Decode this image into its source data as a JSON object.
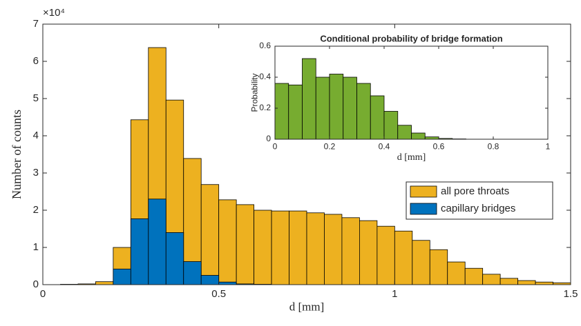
{
  "chart_data": [
    {
      "type": "histogram",
      "xlabel": "d [mm]",
      "ylabel": "Number of counts",
      "y_multiplier": "×10⁴",
      "bins": [
        0,
        0.05,
        0.1,
        0.15,
        0.2,
        0.25,
        0.3,
        0.35,
        0.4,
        0.45,
        0.5,
        0.55,
        0.6,
        0.65,
        0.7,
        0.75,
        0.8,
        0.85,
        0.9,
        0.95,
        1,
        1.05,
        1.1,
        1.15,
        1.2,
        1.25,
        1.3,
        1.35,
        1.4,
        1.45,
        1.5
      ],
      "series": [
        {
          "name": "all pore throats",
          "color": "#EDB120",
          "values": [
            0.0,
            0.01,
            0.02,
            0.08,
            1.0,
            4.43,
            6.37,
            4.96,
            3.39,
            2.69,
            2.28,
            2.15,
            2.0,
            1.98,
            1.98,
            1.93,
            1.89,
            1.8,
            1.72,
            1.57,
            1.44,
            1.19,
            0.94,
            0.61,
            0.44,
            0.28,
            0.17,
            0.11,
            0.07,
            0.05
          ]
        },
        {
          "name": "capillary bridges",
          "color": "#0072BD",
          "values": [
            0,
            0,
            0,
            0,
            0.42,
            1.77,
            2.3,
            1.4,
            0.62,
            0.25,
            0.07,
            0.02,
            0.01,
            0,
            0,
            0,
            0,
            0,
            0,
            0,
            0,
            0,
            0,
            0,
            0,
            0,
            0,
            0,
            0,
            0
          ]
        }
      ],
      "xlim": [
        0,
        1.5
      ],
      "xticks": [
        0,
        0.5,
        1,
        1.5
      ],
      "ylim": [
        0,
        7
      ],
      "yticks": [
        0,
        1,
        2,
        3,
        4,
        5,
        6,
        7
      ],
      "legend": "right"
    },
    {
      "type": "histogram",
      "title": "Conditional probability of bridge formation",
      "xlabel": "d [mm]",
      "ylabel": "Probability",
      "bins": [
        0,
        0.05,
        0.1,
        0.15,
        0.2,
        0.25,
        0.3,
        0.35,
        0.4,
        0.45,
        0.5,
        0.55,
        0.6,
        0.65,
        0.7,
        0.75,
        0.8,
        0.85,
        0.9,
        0.95,
        1
      ],
      "series": [
        {
          "color": "#77AC30",
          "values": [
            0.36,
            0.35,
            0.52,
            0.4,
            0.42,
            0.4,
            0.36,
            0.28,
            0.18,
            0.09,
            0.04,
            0.015,
            0.005,
            0.002,
            0,
            0,
            0,
            0,
            0,
            0
          ]
        }
      ],
      "xlim": [
        0,
        1
      ],
      "xticks": [
        0,
        0.2,
        0.4,
        0.6,
        0.8,
        1
      ],
      "ylim": [
        0,
        0.6
      ],
      "yticks": [
        0,
        0.2,
        0.4,
        0.6
      ]
    }
  ]
}
